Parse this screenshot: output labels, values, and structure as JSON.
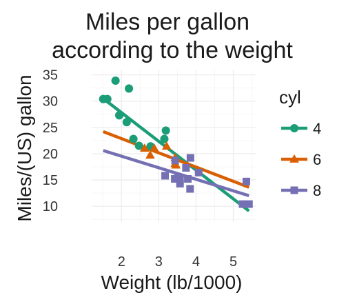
{
  "chart_data": {
    "type": "scatter",
    "title_lines": [
      "Miles per gallon",
      "according to the weight"
    ],
    "xlabel": "Weight (lb/1000)",
    "ylabel": "Miles/(US) gallon",
    "xlim": [
      1.2,
      5.6
    ],
    "ylim": [
      7,
      36
    ],
    "x_ticks": [
      2,
      3,
      4,
      5
    ],
    "y_ticks": [
      10,
      15,
      20,
      25,
      30,
      35
    ],
    "grid": true,
    "legend": {
      "title": "cyl",
      "position": "right"
    },
    "series": [
      {
        "name": "4",
        "color": "#1b9e77",
        "marker": "circle",
        "points": [
          [
            1.51,
            30.4
          ],
          [
            1.62,
            30.4
          ],
          [
            1.84,
            33.9
          ],
          [
            1.94,
            27.3
          ],
          [
            2.14,
            26.0
          ],
          [
            2.2,
            32.4
          ],
          [
            2.32,
            22.8
          ],
          [
            2.47,
            21.5
          ],
          [
            2.78,
            21.4
          ],
          [
            3.15,
            22.8
          ],
          [
            3.19,
            24.4
          ]
        ],
        "fit": [
          [
            1.51,
            30.5
          ],
          [
            5.42,
            9.1
          ]
        ]
      },
      {
        "name": "6",
        "color": "#d95f02",
        "marker": "triangle",
        "points": [
          [
            2.62,
            21.0
          ],
          [
            2.77,
            19.7
          ],
          [
            2.88,
            21.0
          ],
          [
            3.21,
            21.4
          ],
          [
            3.44,
            18.1
          ],
          [
            3.44,
            19.2
          ],
          [
            3.46,
            17.8
          ]
        ],
        "fit": [
          [
            1.51,
            24.2
          ],
          [
            5.42,
            13.6
          ]
        ]
      },
      {
        "name": "8",
        "color": "#7570b3",
        "marker": "square",
        "points": [
          [
            3.17,
            15.8
          ],
          [
            3.44,
            18.7
          ],
          [
            3.52,
            15.5
          ],
          [
            3.43,
            15.2
          ],
          [
            3.57,
            14.3
          ],
          [
            3.57,
            15.0
          ],
          [
            3.73,
            17.3
          ],
          [
            3.78,
            15.2
          ],
          [
            3.84,
            13.3
          ],
          [
            3.85,
            19.2
          ],
          [
            4.07,
            16.4
          ],
          [
            5.25,
            10.4
          ],
          [
            5.42,
            10.4
          ],
          [
            5.35,
            14.7
          ]
        ],
        "fit": [
          [
            1.51,
            20.6
          ],
          [
            5.42,
            12.0
          ]
        ]
      }
    ]
  }
}
